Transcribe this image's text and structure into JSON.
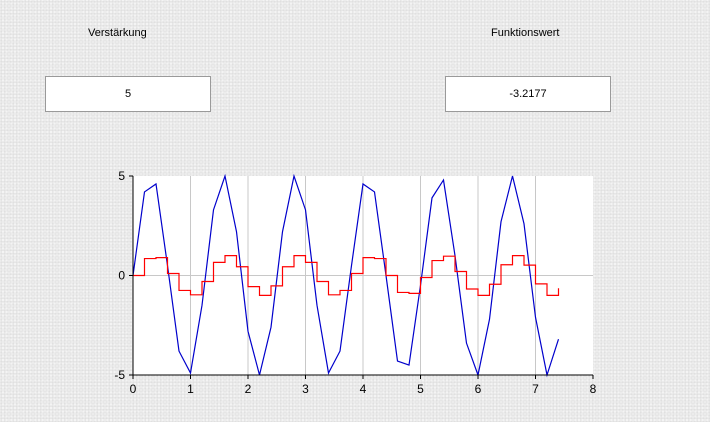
{
  "gain": {
    "label": "Verstärkung",
    "value": "5"
  },
  "function_value": {
    "label": "Funktionswert",
    "value": "-3.2177"
  },
  "chart_data": {
    "type": "line",
    "xlim": [
      0,
      8
    ],
    "ylim": [
      -5,
      5
    ],
    "xticks": [
      "0",
      "1",
      "2",
      "3",
      "4",
      "5",
      "6",
      "7",
      "8"
    ],
    "yticks": [
      "5",
      "0",
      "-5"
    ],
    "grid": true,
    "series": [
      {
        "color": "#0000cc",
        "style": "line",
        "x": [
          0,
          0.2,
          0.4,
          0.6,
          0.8,
          1.0,
          1.2,
          1.4,
          1.6,
          1.8,
          2.0,
          2.2,
          2.4,
          2.6,
          2.8,
          3.0,
          3.2,
          3.4,
          3.6,
          3.8,
          4.0,
          4.2,
          4.4,
          4.6,
          4.8,
          5.0,
          5.2,
          5.4,
          5.6,
          5.8,
          6.0,
          6.2,
          6.4,
          6.6,
          6.8,
          7.0,
          7.2,
          7.4
        ],
        "y": [
          0,
          4.2,
          4.6,
          0.5,
          -3.8,
          -4.9,
          -1.5,
          3.3,
          5.0,
          2.2,
          -2.8,
          -5.0,
          -2.6,
          2.2,
          5.0,
          3.3,
          -1.5,
          -4.9,
          -3.8,
          0.5,
          4.6,
          4.2,
          0,
          -4.3,
          -4.5,
          -0.5,
          3.9,
          4.8,
          1.0,
          -3.4,
          -5.0,
          -2.2,
          2.7,
          5.0,
          2.6,
          -2.1,
          -5.0,
          -3.2
        ]
      },
      {
        "color": "#ff0000",
        "style": "step",
        "x": [
          0,
          0.2,
          0.4,
          0.6,
          0.8,
          1.0,
          1.2,
          1.4,
          1.6,
          1.8,
          2.0,
          2.2,
          2.4,
          2.6,
          2.8,
          3.0,
          3.2,
          3.4,
          3.6,
          3.8,
          4.0,
          4.2,
          4.4,
          4.6,
          4.8,
          5.0,
          5.2,
          5.4,
          5.6,
          5.8,
          6.0,
          6.2,
          6.4,
          6.6,
          6.8,
          7.0,
          7.2,
          7.4
        ],
        "y": [
          0,
          0.85,
          0.9,
          0.1,
          -0.75,
          -0.97,
          -0.3,
          0.66,
          1.0,
          0.44,
          -0.56,
          -1.0,
          -0.52,
          0.44,
          1.0,
          0.66,
          -0.3,
          -0.97,
          -0.75,
          0.1,
          0.9,
          0.85,
          0,
          -0.85,
          -0.9,
          -0.1,
          0.75,
          0.97,
          0.2,
          -0.68,
          -1.0,
          -0.44,
          0.54,
          1.0,
          0.52,
          -0.42,
          -1.0,
          -0.64
        ]
      }
    ]
  }
}
